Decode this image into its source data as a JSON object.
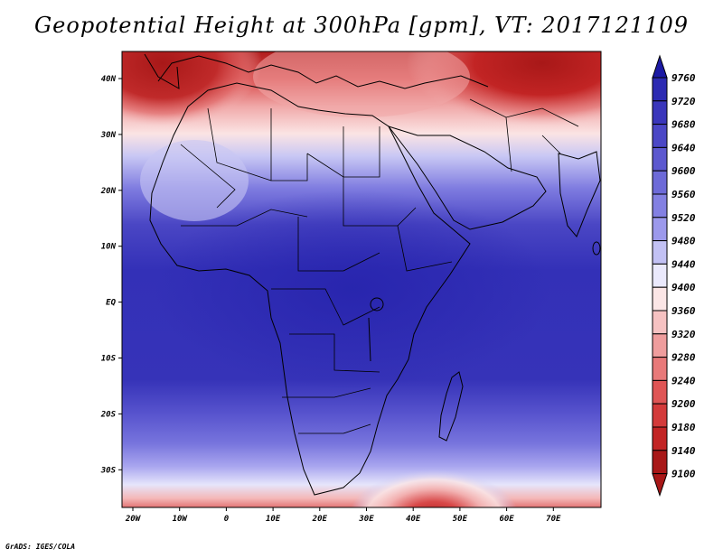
{
  "title": "Geopotential Height at 300hPa [gpm], VT: 2017121109",
  "credit": "GrADS: IGES/COLA",
  "map": {
    "type": "filled-contour",
    "variable": "Geopotential Height",
    "level": "300hPa",
    "unit": "gpm",
    "valid_time": "2017121109",
    "lon_ticks": [
      "20W",
      "10W",
      "0",
      "10E",
      "20E",
      "30E",
      "40E",
      "50E",
      "60E",
      "70E"
    ],
    "lat_ticks": [
      "40N",
      "30N",
      "20N",
      "10N",
      "EQ",
      "10S",
      "20S",
      "30S"
    ],
    "features": {
      "high_heights": "tropics over central Africa, Arabian Sea and Indian Ocean (~9680-9720 gpm)",
      "low_heights_north": "Mediterranean / North Africa, Middle East (<9100 gpm)",
      "low_heights_south": "south of Madagascar near 50E, 35S (~9100 gpm)"
    }
  },
  "colorbar": {
    "levels": [
      "9760",
      "9720",
      "9680",
      "9640",
      "9600",
      "9560",
      "9520",
      "9480",
      "9440",
      "9400",
      "9360",
      "9320",
      "9280",
      "9240",
      "9200",
      "9180",
      "9140",
      "9100"
    ],
    "colors": [
      "#1c1aa4",
      "#2c2ab2",
      "#3a36bb",
      "#4b47c6",
      "#5c58cf",
      "#6d6ad8",
      "#8380e2",
      "#9c99ec",
      "#c2c1f4",
      "#eae9fc",
      "#fbe6e6",
      "#f6c2c2",
      "#ef9d9d",
      "#e87979",
      "#df5555",
      "#d33a3a",
      "#c22424",
      "#a81818"
    ]
  }
}
